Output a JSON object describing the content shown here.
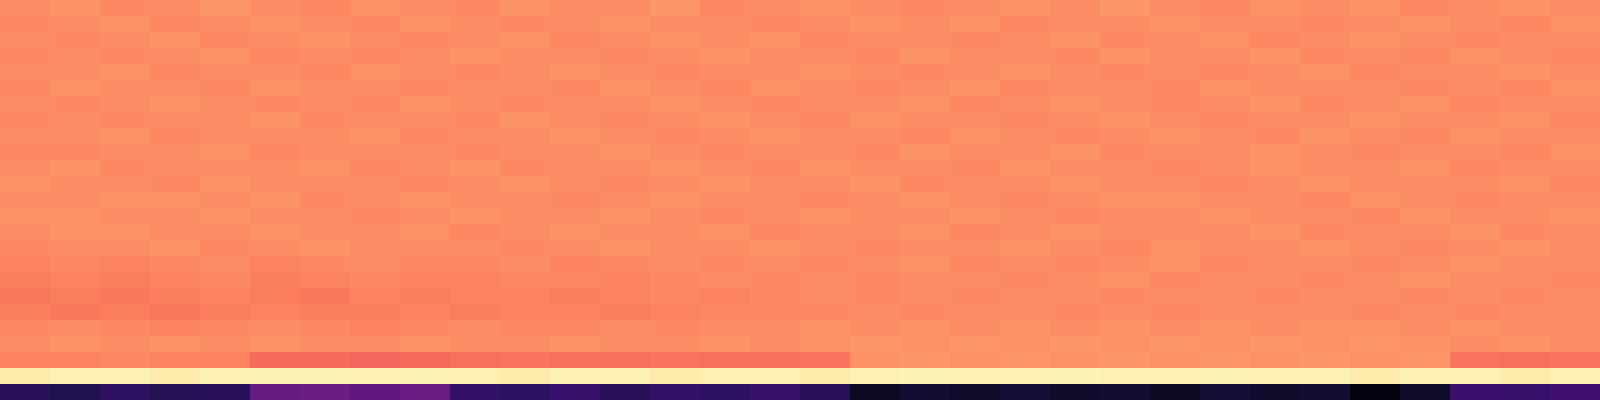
{
  "chart_data": {
    "type": "heatmap",
    "tick_labels": false,
    "zlim": [
      0,
      1
    ],
    "cells": [
      [
        0.76,
        0.77,
        0.75,
        0.76,
        0.78,
        0.76,
        0.75,
        0.77,
        0.76,
        0.75,
        0.77,
        0.76,
        0.76,
        0.78,
        0.75,
        0.76,
        0.77,
        0.76,
        0.75,
        0.76,
        0.77,
        0.76,
        0.78,
        0.76,
        0.75,
        0.77,
        0.76,
        0.77,
        0.75,
        0.76,
        0.77,
        0.76
      ],
      [
        0.75,
        0.76,
        0.77,
        0.75,
        0.76,
        0.77,
        0.76,
        0.75,
        0.77,
        0.76,
        0.75,
        0.76,
        0.77,
        0.76,
        0.76,
        0.75,
        0.76,
        0.77,
        0.76,
        0.77,
        0.75,
        0.76,
        0.76,
        0.77,
        0.76,
        0.76,
        0.75,
        0.76,
        0.77,
        0.76,
        0.75,
        0.77
      ],
      [
        0.76,
        0.75,
        0.76,
        0.77,
        0.75,
        0.76,
        0.77,
        0.76,
        0.75,
        0.76,
        0.77,
        0.75,
        0.76,
        0.77,
        0.76,
        0.77,
        0.75,
        0.76,
        0.76,
        0.75,
        0.76,
        0.77,
        0.75,
        0.76,
        0.77,
        0.75,
        0.76,
        0.77,
        0.76,
        0.75,
        0.76,
        0.76
      ],
      [
        0.75,
        0.76,
        0.75,
        0.76,
        0.77,
        0.75,
        0.76,
        0.75,
        0.76,
        0.77,
        0.76,
        0.76,
        0.75,
        0.76,
        0.77,
        0.76,
        0.76,
        0.75,
        0.77,
        0.76,
        0.76,
        0.75,
        0.77,
        0.76,
        0.76,
        0.77,
        0.75,
        0.76,
        0.75,
        0.77,
        0.76,
        0.75
      ],
      [
        0.76,
        0.76,
        0.77,
        0.75,
        0.76,
        0.76,
        0.75,
        0.77,
        0.76,
        0.75,
        0.76,
        0.77,
        0.76,
        0.75,
        0.76,
        0.76,
        0.77,
        0.76,
        0.75,
        0.76,
        0.77,
        0.76,
        0.75,
        0.76,
        0.75,
        0.76,
        0.77,
        0.75,
        0.76,
        0.76,
        0.77,
        0.76
      ],
      [
        0.75,
        0.77,
        0.76,
        0.76,
        0.75,
        0.77,
        0.76,
        0.76,
        0.75,
        0.76,
        0.76,
        0.75,
        0.77,
        0.76,
        0.75,
        0.77,
        0.76,
        0.75,
        0.76,
        0.77,
        0.75,
        0.76,
        0.76,
        0.75,
        0.77,
        0.76,
        0.76,
        0.76,
        0.75,
        0.76,
        0.75,
        0.77
      ],
      [
        0.76,
        0.75,
        0.76,
        0.77,
        0.76,
        0.75,
        0.76,
        0.75,
        0.77,
        0.76,
        0.75,
        0.76,
        0.76,
        0.77,
        0.76,
        0.75,
        0.76,
        0.76,
        0.77,
        0.75,
        0.76,
        0.77,
        0.76,
        0.75,
        0.76,
        0.77,
        0.75,
        0.76,
        0.77,
        0.75,
        0.76,
        0.76
      ],
      [
        0.75,
        0.76,
        0.75,
        0.76,
        0.76,
        0.77,
        0.75,
        0.76,
        0.76,
        0.75,
        0.77,
        0.76,
        0.75,
        0.76,
        0.77,
        0.76,
        0.75,
        0.77,
        0.76,
        0.76,
        0.75,
        0.76,
        0.77,
        0.76,
        0.75,
        0.76,
        0.76,
        0.77,
        0.76,
        0.76,
        0.77,
        0.75
      ],
      [
        0.76,
        0.76,
        0.77,
        0.75,
        0.76,
        0.76,
        0.76,
        0.77,
        0.75,
        0.76,
        0.76,
        0.77,
        0.76,
        0.75,
        0.76,
        0.77,
        0.76,
        0.76,
        0.75,
        0.77,
        0.76,
        0.75,
        0.76,
        0.77,
        0.76,
        0.75,
        0.77,
        0.76,
        0.75,
        0.77,
        0.76,
        0.76
      ],
      [
        0.75,
        0.75,
        0.76,
        0.76,
        0.77,
        0.75,
        0.76,
        0.76,
        0.76,
        0.75,
        0.76,
        0.76,
        0.77,
        0.76,
        0.75,
        0.76,
        0.76,
        0.75,
        0.77,
        0.76,
        0.76,
        0.77,
        0.75,
        0.76,
        0.76,
        0.77,
        0.76,
        0.75,
        0.76,
        0.76,
        0.75,
        0.77
      ],
      [
        0.76,
        0.77,
        0.75,
        0.76,
        0.76,
        0.76,
        0.77,
        0.75,
        0.76,
        0.77,
        0.75,
        0.76,
        0.76,
        0.77,
        0.76,
        0.75,
        0.77,
        0.76,
        0.76,
        0.75,
        0.77,
        0.76,
        0.76,
        0.75,
        0.76,
        0.77,
        0.76,
        0.76,
        0.77,
        0.75,
        0.76,
        0.76
      ],
      [
        0.77,
        0.76,
        0.76,
        0.75,
        0.77,
        0.76,
        0.76,
        0.76,
        0.75,
        0.76,
        0.77,
        0.76,
        0.75,
        0.76,
        0.77,
        0.76,
        0.76,
        0.77,
        0.75,
        0.76,
        0.76,
        0.77,
        0.76,
        0.76,
        0.75,
        0.76,
        0.77,
        0.76,
        0.76,
        0.76,
        0.77,
        0.75
      ],
      [
        0.76,
        0.76,
        0.77,
        0.77,
        0.76,
        0.77,
        0.75,
        0.76,
        0.77,
        0.76,
        0.76,
        0.75,
        0.76,
        0.77,
        0.76,
        0.76,
        0.75,
        0.76,
        0.77,
        0.76,
        0.75,
        0.76,
        0.77,
        0.77,
        0.76,
        0.76,
        0.75,
        0.77,
        0.76,
        0.75,
        0.76,
        0.76
      ],
      [
        0.77,
        0.77,
        0.76,
        0.76,
        0.77,
        0.76,
        0.76,
        0.75,
        0.76,
        0.77,
        0.76,
        0.76,
        0.77,
        0.76,
        0.75,
        0.76,
        0.77,
        0.76,
        0.76,
        0.77,
        0.76,
        0.75,
        0.76,
        0.76,
        0.77,
        0.76,
        0.76,
        0.75,
        0.77,
        0.76,
        0.76,
        0.77
      ],
      [
        0.76,
        0.77,
        0.77,
        0.76,
        0.76,
        0.77,
        0.76,
        0.76,
        0.77,
        0.75,
        0.76,
        0.77,
        0.76,
        0.76,
        0.77,
        0.75,
        0.76,
        0.76,
        0.77,
        0.75,
        0.76,
        0.77,
        0.76,
        0.76,
        0.76,
        0.77,
        0.75,
        0.76,
        0.76,
        0.77,
        0.75,
        0.76
      ],
      [
        0.75,
        0.76,
        0.76,
        0.77,
        0.75,
        0.76,
        0.77,
        0.76,
        0.76,
        0.76,
        0.75,
        0.76,
        0.77,
        0.76,
        0.76,
        0.77,
        0.76,
        0.75,
        0.76,
        0.76,
        0.77,
        0.76,
        0.75,
        0.77,
        0.76,
        0.76,
        0.77,
        0.76,
        0.75,
        0.76,
        0.77,
        0.76
      ],
      [
        0.74,
        0.75,
        0.74,
        0.75,
        0.76,
        0.74,
        0.75,
        0.76,
        0.75,
        0.75,
        0.76,
        0.74,
        0.75,
        0.76,
        0.75,
        0.76,
        0.75,
        0.76,
        0.77,
        0.75,
        0.76,
        0.75,
        0.76,
        0.77,
        0.75,
        0.76,
        0.76,
        0.75,
        0.76,
        0.77,
        0.76,
        0.76
      ],
      [
        0.73,
        0.74,
        0.73,
        0.74,
        0.75,
        0.73,
        0.74,
        0.75,
        0.74,
        0.74,
        0.75,
        0.75,
        0.74,
        0.75,
        0.76,
        0.75,
        0.76,
        0.75,
        0.76,
        0.76,
        0.75,
        0.76,
        0.77,
        0.75,
        0.76,
        0.76,
        0.75,
        0.76,
        0.77,
        0.76,
        0.76,
        0.75
      ],
      [
        0.72,
        0.73,
        0.72,
        0.73,
        0.74,
        0.73,
        0.72,
        0.74,
        0.73,
        0.74,
        0.74,
        0.73,
        0.74,
        0.75,
        0.74,
        0.75,
        0.76,
        0.75,
        0.76,
        0.75,
        0.76,
        0.76,
        0.75,
        0.76,
        0.76,
        0.75,
        0.76,
        0.76,
        0.75,
        0.76,
        0.75,
        0.76
      ],
      [
        0.73,
        0.72,
        0.73,
        0.72,
        0.73,
        0.74,
        0.73,
        0.73,
        0.74,
        0.73,
        0.74,
        0.74,
        0.73,
        0.74,
        0.75,
        0.75,
        0.75,
        0.76,
        0.75,
        0.76,
        0.76,
        0.75,
        0.76,
        0.75,
        0.76,
        0.76,
        0.76,
        0.75,
        0.76,
        0.75,
        0.76,
        0.76
      ],
      [
        0.75,
        0.76,
        0.75,
        0.74,
        0.75,
        0.76,
        0.75,
        0.74,
        0.75,
        0.76,
        0.75,
        0.75,
        0.76,
        0.75,
        0.76,
        0.76,
        0.77,
        0.76,
        0.77,
        0.76,
        0.77,
        0.76,
        0.77,
        0.76,
        0.77,
        0.76,
        0.77,
        0.77,
        0.76,
        0.77,
        0.76,
        0.76
      ],
      [
        0.76,
        0.77,
        0.76,
        0.77,
        0.76,
        0.77,
        0.76,
        0.76,
        0.77,
        0.76,
        0.76,
        0.77,
        0.76,
        0.76,
        0.77,
        0.76,
        0.77,
        0.78,
        0.77,
        0.78,
        0.77,
        0.78,
        0.77,
        0.78,
        0.77,
        0.78,
        0.77,
        0.78,
        0.77,
        0.76,
        0.77,
        0.76
      ],
      [
        0.74,
        0.74,
        0.75,
        0.74,
        0.74,
        0.69,
        0.69,
        0.68,
        0.69,
        0.7,
        0.71,
        0.7,
        0.7,
        0.71,
        0.7,
        0.7,
        0.71,
        0.77,
        0.78,
        0.77,
        0.78,
        0.77,
        0.78,
        0.77,
        0.78,
        0.77,
        0.78,
        0.77,
        0.78,
        0.71,
        0.7,
        0.71
      ],
      [
        0.96,
        0.97,
        0.97,
        0.96,
        0.97,
        0.98,
        0.98,
        0.97,
        0.98,
        0.97,
        0.96,
        0.97,
        0.97,
        0.96,
        0.97,
        0.97,
        0.96,
        0.97,
        0.98,
        0.97,
        0.97,
        0.98,
        0.97,
        0.97,
        0.98,
        0.97,
        0.97,
        0.96,
        0.97,
        0.97,
        0.96,
        0.97
      ],
      [
        0.16,
        0.14,
        0.17,
        0.15,
        0.16,
        0.3,
        0.32,
        0.29,
        0.31,
        0.18,
        0.17,
        0.19,
        0.16,
        0.18,
        0.17,
        0.19,
        0.16,
        0.07,
        0.09,
        0.08,
        0.1,
        0.08,
        0.09,
        0.07,
        0.1,
        0.08,
        0.09,
        0.03,
        0.08,
        0.2,
        0.19,
        0.21
      ]
    ]
  }
}
